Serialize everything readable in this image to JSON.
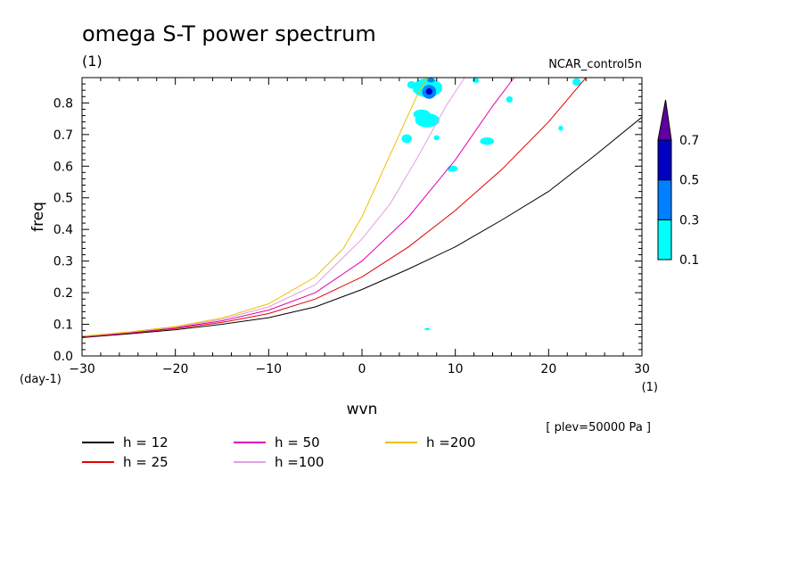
{
  "chart_data": {
    "type": "line",
    "title": "omega S-T power spectrum",
    "units_left": "(1)",
    "run_name": "NCAR_control5n",
    "xlabel": "wvn",
    "ylabel": "freq",
    "x_units": "(1)",
    "y_units": "(day-1)",
    "plev_note": "[ plev=50000 Pa ]",
    "xlim": [
      -30,
      30
    ],
    "ylim": [
      0,
      0.88
    ],
    "x_ticks": [
      "−30",
      "−20",
      "−10",
      "0",
      "10",
      "20",
      "30"
    ],
    "x_tick_values": [
      -30,
      -20,
      -10,
      0,
      10,
      20,
      30
    ],
    "y_ticks": [
      "0.0",
      "0.1",
      "0.2",
      "0.3",
      "0.4",
      "0.5",
      "0.6",
      "0.7",
      "0.8"
    ],
    "y_tick_values": [
      0,
      0.1,
      0.2,
      0.3,
      0.4,
      0.5,
      0.6,
      0.7,
      0.8
    ],
    "grid": false,
    "legend_position": "bottom",
    "series": [
      {
        "name": "h = 12",
        "h": 12,
        "color": "#000000",
        "x": [
          -30,
          -25,
          -20,
          -15,
          -10,
          -5,
          0,
          5,
          10,
          15,
          20,
          25,
          30
        ],
        "y": [
          0.058,
          0.07,
          0.083,
          0.1,
          0.121,
          0.155,
          0.21,
          0.275,
          0.345,
          0.43,
          0.52,
          0.635,
          0.755
        ]
      },
      {
        "name": "h = 25",
        "h": 25,
        "color": "#e00000",
        "x": [
          -30,
          -25,
          -20,
          -15,
          -10,
          -5,
          0,
          5,
          10,
          15,
          20,
          24
        ],
        "y": [
          0.06,
          0.072,
          0.087,
          0.106,
          0.134,
          0.18,
          0.25,
          0.345,
          0.46,
          0.59,
          0.74,
          0.88
        ]
      },
      {
        "name": "h = 50",
        "h": 50,
        "color": "#e000b0",
        "x": [
          -30,
          -25,
          -20,
          -15,
          -10,
          -5,
          0,
          5,
          10,
          14,
          16.3
        ],
        "y": [
          0.061,
          0.073,
          0.089,
          0.111,
          0.145,
          0.2,
          0.3,
          0.44,
          0.62,
          0.79,
          0.88
        ]
      },
      {
        "name": "h =100",
        "h": 100,
        "color": "#e0a0e0",
        "x": [
          -30,
          -25,
          -20,
          -15,
          -10,
          -5,
          0,
          3,
          6,
          9,
          11
        ],
        "y": [
          0.062,
          0.075,
          0.091,
          0.116,
          0.155,
          0.225,
          0.37,
          0.48,
          0.63,
          0.79,
          0.88
        ]
      },
      {
        "name": "h =200",
        "h": 200,
        "color": "#f0c000",
        "x": [
          -30,
          -25,
          -20,
          -15,
          -10,
          -5,
          -2,
          0,
          2,
          4,
          6,
          7
        ],
        "y": [
          0.063,
          0.076,
          0.093,
          0.12,
          0.165,
          0.25,
          0.34,
          0.44,
          0.57,
          0.7,
          0.83,
          0.88
        ]
      }
    ],
    "contour_levels": [
      0.1,
      0.3,
      0.5,
      0.7
    ],
    "colorbar_labels": [
      "0.1",
      "0.3",
      "0.5",
      "0.7"
    ],
    "contour_colors": [
      "#00ffff",
      "#0080ff",
      "#0000c0",
      "#6000a0"
    ],
    "contour_patches": [
      {
        "level": 0.1,
        "x": 5.3,
        "y": 0.857,
        "rx": 0.45,
        "ry": 0.012
      },
      {
        "level": 0.1,
        "x": 7.0,
        "y": 0.848,
        "rx": 1.6,
        "ry": 0.03
      },
      {
        "level": 0.1,
        "x": 7.0,
        "y": 0.745,
        "rx": 1.3,
        "ry": 0.022
      },
      {
        "level": 0.1,
        "x": 6.4,
        "y": 0.764,
        "rx": 0.9,
        "ry": 0.015
      },
      {
        "level": 0.1,
        "x": 4.8,
        "y": 0.687,
        "rx": 0.55,
        "ry": 0.014
      },
      {
        "level": 0.1,
        "x": 13.4,
        "y": 0.679,
        "rx": 0.75,
        "ry": 0.012
      },
      {
        "level": 0.1,
        "x": 9.7,
        "y": 0.592,
        "rx": 0.55,
        "ry": 0.01
      },
      {
        "level": 0.1,
        "x": 15.8,
        "y": 0.811,
        "rx": 0.35,
        "ry": 0.01
      },
      {
        "level": 0.1,
        "x": 12.2,
        "y": 0.871,
        "rx": 0.35,
        "ry": 0.008
      },
      {
        "level": 0.1,
        "x": 23.0,
        "y": 0.866,
        "rx": 0.45,
        "ry": 0.012
      },
      {
        "level": 0.1,
        "x": 21.3,
        "y": 0.72,
        "rx": 0.25,
        "ry": 0.008
      },
      {
        "level": 0.1,
        "x": 8.0,
        "y": 0.69,
        "rx": 0.3,
        "ry": 0.008
      },
      {
        "level": 0.1,
        "x": 7.0,
        "y": 0.085,
        "rx": 0.3,
        "ry": 0.004
      },
      {
        "level": 0.3,
        "x": 7.2,
        "y": 0.835,
        "rx": 0.75,
        "ry": 0.022
      },
      {
        "level": 0.3,
        "x": 7.4,
        "y": 0.872,
        "rx": 0.4,
        "ry": 0.007
      },
      {
        "level": 0.5,
        "x": 7.2,
        "y": 0.836,
        "rx": 0.35,
        "ry": 0.01
      }
    ]
  }
}
